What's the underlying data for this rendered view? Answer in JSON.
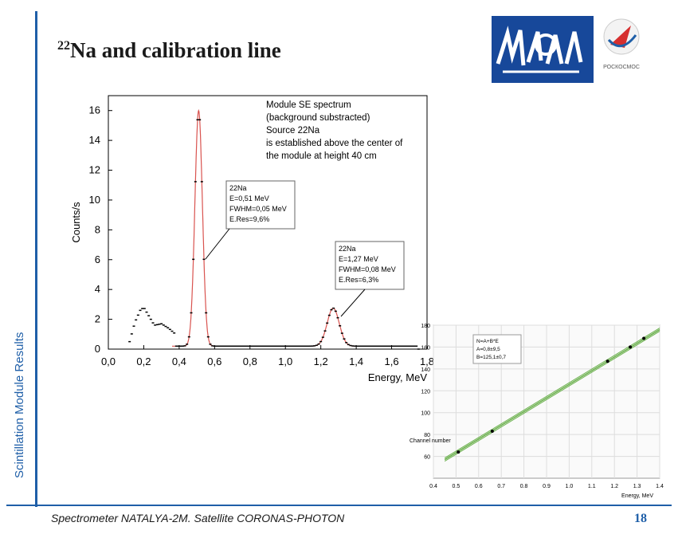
{
  "slide": {
    "title_sup": "22",
    "title_main": "Na and calibration line",
    "side_label": "Scintillation Module Results",
    "footer": "Spectrometer NATALYA-2M. Satellite CORONAS-PHOTON",
    "page_number": "18",
    "logo2_text": "РОСКОСМОС",
    "colors": {
      "accent": "#1f5fa8",
      "logo_bg": "#17489a",
      "fit_line": "#d9534f",
      "calib_line": "#6ab04c"
    }
  },
  "chart_data": [
    {
      "type": "scatter",
      "xlabel": "Energy, MeV",
      "ylabel": "Counts/s",
      "xlim": [
        0.0,
        1.8
      ],
      "ylim": [
        0,
        17
      ],
      "x_ticks": [
        "0,0",
        "0,2",
        "0,4",
        "0,6",
        "0,8",
        "1,0",
        "1,2",
        "1,4",
        "1,6",
        "1,8"
      ],
      "y_ticks": [
        "0",
        "2",
        "4",
        "6",
        "8",
        "10",
        "12",
        "14",
        "16"
      ],
      "annotation_main": [
        "Module SE spectrum",
        "(background substracted)",
        "Source 22Na",
        "is established above the center of",
        "the module at height 40 cm"
      ],
      "box1": [
        "22Na",
        "E=0,51 MeV",
        "FWHM=0,05 MeV",
        "E.Res=9,6%"
      ],
      "box2": [
        "22Na",
        "E=1,27 MeV",
        "FWHM=0,08 MeV",
        "E.Res=6,3%"
      ],
      "peaks": [
        {
          "center": 0.51,
          "height": 15.8,
          "fwhm": 0.05
        },
        {
          "center": 1.27,
          "height": 2.55,
          "fwhm": 0.08
        }
      ],
      "low_energy_bump": {
        "x": [
          0.12,
          0.15,
          0.18,
          0.2,
          0.23,
          0.26,
          0.3,
          0.34,
          0.38
        ],
        "y": [
          0.5,
          1.8,
          2.6,
          2.8,
          2.2,
          1.6,
          1.7,
          1.4,
          1.0
        ]
      },
      "grid": false
    },
    {
      "type": "line",
      "xlabel": "Energy, MeV",
      "ylabel": "Channel number",
      "xlim": [
        0.4,
        1.4
      ],
      "ylim": [
        40,
        180
      ],
      "x_ticks": [
        "0.4",
        "0.5",
        "0.6",
        "0.7",
        "0.8",
        "0.9",
        "1.0",
        "1.1",
        "1.2",
        "1.3",
        "1.4"
      ],
      "y_ticks": [
        "60",
        "80",
        "100",
        "120",
        "140",
        "160",
        "180"
      ],
      "legend": [
        "N=A+B*E",
        "A=0,8±9,5",
        "B=125,1±0,7"
      ],
      "fit": {
        "A": 0.8,
        "B": 125.1
      },
      "points": {
        "x": [
          0.51,
          0.66,
          1.17,
          1.27,
          1.33
        ],
        "y": [
          64,
          83,
          147,
          160,
          168
        ]
      },
      "grid": true
    }
  ]
}
